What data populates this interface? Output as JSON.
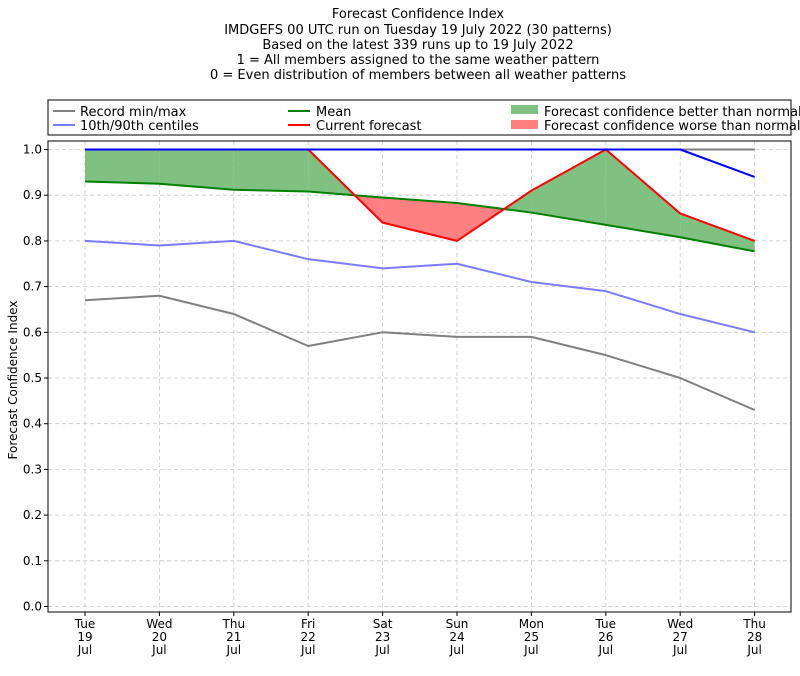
{
  "chart_data": {
    "type": "line",
    "title": "Forecast Confidence Index",
    "subtitle": [
      "IMDGEFS 00 UTC run on Tuesday 19 July 2022 (30 patterns)",
      "Based on the latest 339 runs up to 19 July 2022",
      "1 = All members assigned to the same weather pattern",
      "0 = Even distribution of members between all weather patterns"
    ],
    "xlabel": "",
    "ylabel": "Forecast Confidence Index",
    "ylim": [
      0,
      1
    ],
    "yticks": [
      "0.0",
      "0.1",
      "0.2",
      "0.3",
      "0.4",
      "0.5",
      "0.6",
      "0.7",
      "0.8",
      "0.9",
      "1.0"
    ],
    "categories": [
      [
        "Tue",
        "19",
        "Jul"
      ],
      [
        "Wed",
        "20",
        "Jul"
      ],
      [
        "Thu",
        "21",
        "Jul"
      ],
      [
        "Fri",
        "22",
        "Jul"
      ],
      [
        "Sat",
        "23",
        "Jul"
      ],
      [
        "Sun",
        "24",
        "Jul"
      ],
      [
        "Mon",
        "25",
        "Jul"
      ],
      [
        "Tue",
        "26",
        "Jul"
      ],
      [
        "Wed",
        "27",
        "Jul"
      ],
      [
        "Thu",
        "28",
        "Jul"
      ]
    ],
    "grid": true,
    "legend_position": "top",
    "legend": [
      {
        "label": "Record min/max",
        "kind": "line",
        "color": "#808080"
      },
      {
        "label": "10th/90th centiles",
        "kind": "line",
        "color": "#7b7bff"
      },
      {
        "label": "Mean",
        "kind": "line",
        "color": "#008000"
      },
      {
        "label": "Current forecast",
        "kind": "line",
        "color": "#ff0000"
      },
      {
        "label": "Forecast confidence better than normal",
        "kind": "patch",
        "color": "#80c080"
      },
      {
        "label": "Forecast confidence worse than normal",
        "kind": "patch",
        "color": "#ff8080"
      }
    ],
    "series": [
      {
        "name": "Record min/max",
        "role": "record_min",
        "color": "#808080",
        "values": [
          0.67,
          0.68,
          0.64,
          0.57,
          0.6,
          0.59,
          0.59,
          0.55,
          0.5,
          0.43
        ]
      },
      {
        "name": "Record min/max",
        "role": "record_max",
        "color": "#808080",
        "values": [
          1.0,
          1.0,
          1.0,
          1.0,
          1.0,
          1.0,
          1.0,
          1.0,
          1.0,
          1.0
        ]
      },
      {
        "name": "10th/90th centiles",
        "role": "p10",
        "color": "#7b7bff",
        "values": [
          0.8,
          0.79,
          0.8,
          0.76,
          0.74,
          0.75,
          0.71,
          0.69,
          0.64,
          0.6
        ]
      },
      {
        "name": "10th/90th centiles",
        "role": "p90",
        "color": "#0000ff",
        "values": [
          1.0,
          1.0,
          1.0,
          1.0,
          1.0,
          1.0,
          1.0,
          1.0,
          1.0,
          0.94
        ]
      },
      {
        "name": "Mean",
        "role": "mean",
        "color": "#008000",
        "values": [
          0.93,
          0.925,
          0.912,
          0.908,
          0.895,
          0.883,
          0.862,
          0.835,
          0.808,
          0.777
        ]
      },
      {
        "name": "Current forecast",
        "role": "current",
        "color": "#ff0000",
        "values": [
          1.0,
          1.0,
          1.0,
          1.0,
          0.84,
          0.8,
          0.91,
          1.0,
          0.86,
          0.8
        ]
      }
    ],
    "colors": {
      "better": "#80c080",
      "worse": "#ff8080"
    }
  }
}
